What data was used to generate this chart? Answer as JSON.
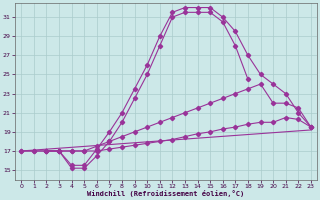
{
  "xlabel": "Windchill (Refroidissement éolien,°C)",
  "bg_color": "#cce8e8",
  "grid_color": "#aacccc",
  "line_color": "#993399",
  "xlim": [
    -0.5,
    23.5
  ],
  "ylim": [
    14,
    32.5
  ],
  "xticks": [
    0,
    1,
    2,
    3,
    4,
    5,
    6,
    7,
    8,
    9,
    10,
    11,
    12,
    13,
    14,
    15,
    16,
    17,
    18,
    19,
    20,
    21,
    22,
    23
  ],
  "yticks": [
    15,
    17,
    19,
    21,
    23,
    25,
    27,
    29,
    31
  ],
  "line1_x": [
    0,
    1,
    2,
    3,
    4,
    5,
    6,
    7,
    8,
    9,
    10,
    11,
    12,
    13,
    14,
    15,
    16,
    17,
    18,
    19,
    20,
    21,
    22,
    23
  ],
  "line1_y": [
    17,
    17,
    17,
    17,
    15.2,
    15.2,
    16.5,
    18,
    20,
    22.5,
    25,
    28,
    31,
    31.5,
    31.5,
    31.5,
    30.5,
    28,
    24.5,
    null,
    null,
    null,
    null,
    null
  ],
  "line2_x": [
    0,
    1,
    2,
    3,
    4,
    5,
    6,
    7,
    8,
    9,
    10,
    11,
    12,
    13,
    14,
    15,
    16,
    17,
    18,
    19,
    20,
    21,
    22,
    23
  ],
  "line2_y": [
    17,
    17,
    17,
    17,
    15.5,
    15.5,
    17.2,
    19,
    21,
    23.5,
    26,
    29,
    31.5,
    32,
    32,
    32,
    31,
    29.5,
    27,
    25,
    24,
    23,
    21,
    19.5
  ],
  "line3_x": [
    2,
    3,
    4,
    5,
    6,
    7,
    8,
    9,
    10,
    11,
    12,
    13,
    14,
    15,
    16,
    17,
    18,
    19,
    20,
    21,
    22,
    23
  ],
  "line3_y": [
    17,
    17,
    17,
    17,
    17.5,
    18,
    18.5,
    19,
    19.5,
    20,
    20.5,
    21,
    21.5,
    22,
    22.5,
    23,
    23.5,
    24,
    22,
    22,
    21.5,
    19.5
  ],
  "line4_x": [
    2,
    3,
    4,
    5,
    6,
    7,
    8,
    9,
    10,
    11,
    12,
    13,
    14,
    15,
    16,
    17,
    18,
    19,
    20,
    21,
    22,
    23
  ],
  "line4_y": [
    17,
    17,
    17,
    17,
    17,
    17.2,
    17.4,
    17.6,
    17.8,
    18,
    18.2,
    18.5,
    18.8,
    19,
    19.3,
    19.5,
    19.8,
    20,
    20,
    20.5,
    20.3,
    19.5
  ],
  "line5_x": [
    0,
    23
  ],
  "line5_y": [
    17,
    19.2
  ]
}
